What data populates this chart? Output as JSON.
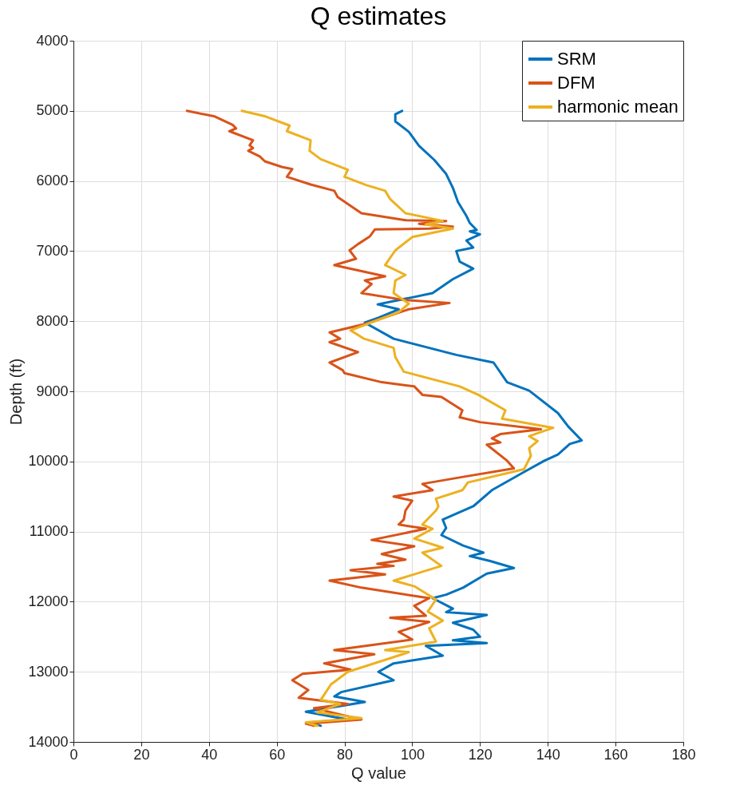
{
  "chart_data": {
    "type": "line",
    "title": "Q estimates",
    "xlabel": "Q value",
    "ylabel": "Depth (ft)",
    "xlim": [
      0,
      180
    ],
    "xticks": [
      0,
      20,
      40,
      60,
      80,
      100,
      120,
      140,
      160,
      180
    ],
    "ylim": [
      14000,
      4000
    ],
    "yticks": [
      4000,
      5000,
      6000,
      7000,
      8000,
      9000,
      10000,
      11000,
      12000,
      13000,
      14000
    ],
    "grid": true,
    "legend": "top right",
    "line_style": "solid",
    "series": [
      {
        "name": "SRM",
        "color": "#0072bd",
        "x": [
          97,
          95,
          95,
          99,
          102,
          106.5,
          110,
          111,
          112,
          113.5,
          116,
          117,
          119,
          117,
          120,
          116,
          118,
          113,
          114,
          118,
          112,
          109,
          106,
          100,
          89.8,
          96,
          90,
          86,
          94.5,
          113,
          124,
          128,
          134.5,
          143,
          146,
          150,
          146.5,
          143,
          139,
          133,
          123.5,
          118,
          109,
          110,
          108.6,
          115,
          121,
          117,
          123,
          130,
          122,
          115,
          110,
          106,
          112,
          110,
          122,
          112,
          118,
          120,
          112,
          122,
          104,
          109,
          94.5,
          90,
          94.5,
          79,
          77,
          86,
          68.6,
          81,
          70,
          73
        ],
        "values": [
          5000,
          5050,
          5150,
          5300,
          5500,
          5700,
          5900,
          6000,
          6100,
          6300,
          6500,
          6600,
          6700,
          6720,
          6760,
          6850,
          6950,
          7000,
          7150,
          7250,
          7400,
          7500,
          7600,
          7660,
          7760,
          7830,
          7950,
          8020,
          8250,
          8480,
          8590,
          8870,
          8990,
          9310,
          9500,
          9700,
          9750,
          9900,
          9990,
          10150,
          10410,
          10640,
          10830,
          10950,
          11050,
          11200,
          11300,
          11350,
          11420,
          11520,
          11600,
          11800,
          11900,
          11950,
          12100,
          12150,
          12190,
          12300,
          12400,
          12500,
          12550,
          12590,
          12630,
          12770,
          12880,
          13000,
          13120,
          13290,
          13350,
          13430,
          13570,
          13680,
          13720,
          13770
        ]
      },
      {
        "name": "DFM",
        "color": "#d95319",
        "x": [
          33.5,
          41.7,
          47,
          48,
          46,
          53,
          52,
          53,
          51.6,
          55,
          56.5,
          61.5,
          64.6,
          63,
          70,
          77,
          78,
          85,
          98,
          110,
          102,
          112,
          105,
          89,
          87.5,
          84,
          81.5,
          83.4,
          77,
          92,
          86,
          88,
          85,
          98,
          111,
          99,
          86,
          75.6,
          78.7,
          75.6,
          84,
          75.6,
          79.5,
          80,
          91,
          100.6,
          103,
          108.6,
          114.8,
          114,
          120,
          138,
          126,
          123.5,
          126,
          122,
          128,
          130,
          115,
          103,
          106,
          94.5,
          100,
          98,
          97.5,
          96,
          104,
          88,
          100.6,
          91,
          98,
          89.7,
          94.5,
          81.8,
          92,
          75.6,
          85,
          105,
          100.6,
          104,
          93.5,
          105,
          96,
          100,
          77,
          88.8,
          74,
          81.8,
          67.6,
          64.6,
          69.3,
          66.5,
          81,
          71,
          85,
          68.6,
          71
        ],
        "values": [
          5000,
          5080,
          5200,
          5250,
          5290,
          5420,
          5490,
          5530,
          5570,
          5650,
          5720,
          5800,
          5830,
          5940,
          6050,
          6140,
          6230,
          6460,
          6560,
          6570,
          6610,
          6650,
          6680,
          6690,
          6790,
          6900,
          6990,
          7110,
          7200,
          7360,
          7420,
          7470,
          7600,
          7700,
          7740,
          7830,
          8040,
          8160,
          8250,
          8300,
          8440,
          8590,
          8700,
          8740,
          8870,
          8930,
          9050,
          9080,
          9270,
          9370,
          9440,
          9540,
          9610,
          9670,
          9730,
          9760,
          9990,
          10100,
          10220,
          10320,
          10410,
          10500,
          10560,
          10700,
          10830,
          10900,
          10960,
          11120,
          11210,
          11320,
          11400,
          11460,
          11490,
          11550,
          11610,
          11700,
          11800,
          11950,
          12060,
          12200,
          12230,
          12290,
          12430,
          12540,
          12690,
          12750,
          12880,
          12970,
          13030,
          13120,
          13260,
          13370,
          13460,
          13520,
          13680,
          13740,
          13770
        ]
      },
      {
        "name": "harmonic mean",
        "color": "#edb120",
        "x": [
          49.7,
          56.7,
          63.8,
          63,
          70,
          69.7,
          73,
          81,
          80,
          86.5,
          92,
          93.5,
          98,
          109,
          104,
          112,
          100,
          95,
          92,
          98,
          95,
          94.5,
          99,
          96,
          83.4,
          81.8,
          85.8,
          94.5,
          95,
          97.5,
          114,
          119.5,
          127.5,
          126.5,
          141.6,
          134.5,
          137,
          134.5,
          135,
          133,
          116.4,
          114.8,
          107,
          107.7,
          107,
          103,
          106,
          100.6,
          109,
          103,
          108.6,
          94.5,
          100.6,
          107,
          104.6,
          109,
          105,
          107,
          92,
          99,
          81,
          76,
          73,
          78.7,
          72,
          85,
          68.6,
          72
        ],
        "values": [
          5000,
          5080,
          5210,
          5290,
          5420,
          5570,
          5690,
          5840,
          5940,
          6060,
          6140,
          6260,
          6460,
          6570,
          6620,
          6680,
          6800,
          6990,
          7200,
          7340,
          7420,
          7600,
          7750,
          7870,
          8100,
          8130,
          8250,
          8380,
          8510,
          8720,
          8930,
          9050,
          9270,
          9390,
          9520,
          9640,
          9710,
          9810,
          9920,
          10110,
          10300,
          10410,
          10530,
          10640,
          10700,
          10900,
          10960,
          11100,
          11230,
          11300,
          11490,
          11700,
          11780,
          11970,
          12140,
          12270,
          12380,
          12570,
          12690,
          12720,
          13000,
          13180,
          13400,
          13460,
          13580,
          13660,
          13720,
          13770
        ]
      }
    ]
  }
}
